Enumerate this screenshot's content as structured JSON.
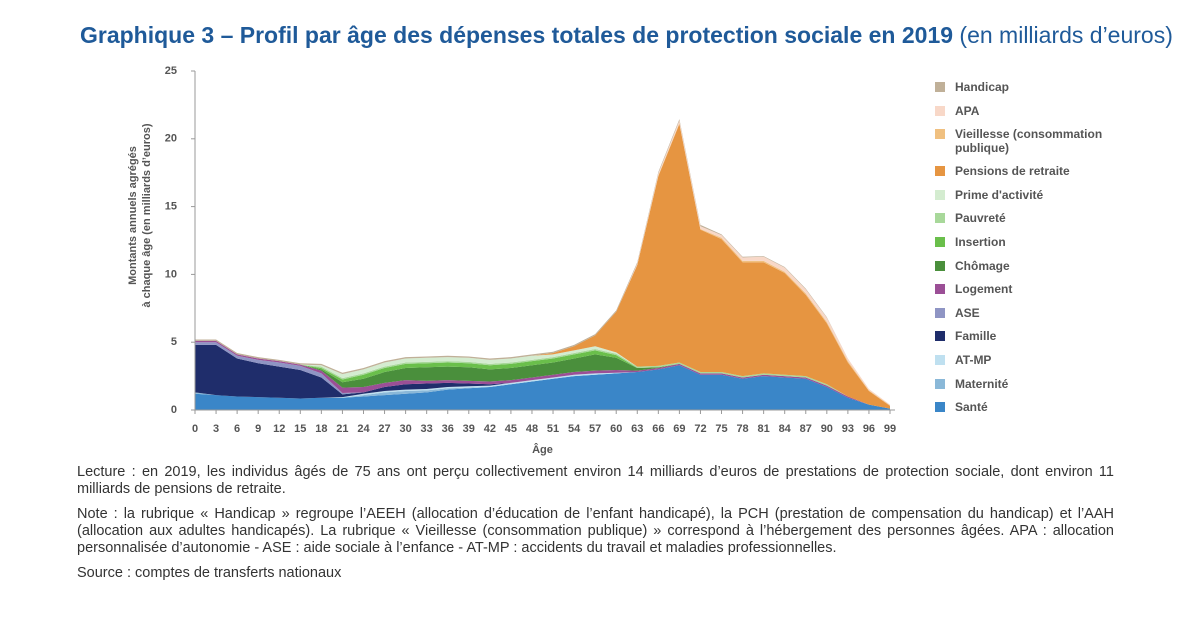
{
  "chart_data": {
    "type": "stacked-area",
    "title": "Graphique 3 – Profil par âge des dépenses totales de protection sociale en 2019",
    "subtitle": "(en milliards d’euros)",
    "ylabel": [
      "Montants annuels agrégés",
      "à chaque âge (en milliards d’euros)"
    ],
    "xlabel": "Âge",
    "xlim": [
      0,
      99
    ],
    "ylim": [
      0,
      25
    ],
    "xticks": [
      0,
      3,
      6,
      9,
      12,
      15,
      18,
      21,
      24,
      27,
      30,
      33,
      36,
      39,
      42,
      45,
      48,
      51,
      54,
      57,
      60,
      63,
      66,
      69,
      72,
      75,
      78,
      81,
      84,
      87,
      90,
      93,
      96,
      99
    ],
    "yticks": [
      0,
      5,
      10,
      15,
      20,
      25
    ],
    "x": [
      0,
      3,
      6,
      9,
      12,
      15,
      18,
      21,
      24,
      27,
      30,
      33,
      36,
      39,
      42,
      45,
      48,
      51,
      54,
      57,
      60,
      63,
      66,
      69,
      72,
      75,
      78,
      81,
      84,
      87,
      90,
      93,
      96,
      99
    ],
    "series": [
      {
        "name": "Santé",
        "color": "#3a86c8",
        "values": [
          1.2,
          1.1,
          1.0,
          0.95,
          0.9,
          0.85,
          0.9,
          0.9,
          1.0,
          1.1,
          1.2,
          1.3,
          1.5,
          1.6,
          1.7,
          1.9,
          2.1,
          2.3,
          2.5,
          2.6,
          2.7,
          2.8,
          3.0,
          3.3,
          2.6,
          2.6,
          2.3,
          2.5,
          2.4,
          2.3,
          1.7,
          0.9,
          0.4,
          0.1
        ]
      },
      {
        "name": "Maternité",
        "color": "#8ab8d8",
        "values": [
          0.1,
          0,
          0,
          0,
          0,
          0,
          0,
          0,
          0.1,
          0.2,
          0.2,
          0.15,
          0.1,
          0.05,
          0,
          0,
          0,
          0,
          0,
          0,
          0,
          0,
          0,
          0,
          0,
          0,
          0,
          0,
          0,
          0,
          0,
          0,
          0,
          0
        ]
      },
      {
        "name": "AT-MP",
        "color": "#bfe0f0",
        "values": [
          0,
          0,
          0,
          0,
          0,
          0,
          0,
          0.05,
          0.1,
          0.1,
          0.1,
          0.1,
          0.1,
          0.1,
          0.1,
          0.1,
          0.1,
          0.1,
          0.1,
          0.1,
          0.05,
          0,
          0,
          0,
          0,
          0,
          0,
          0,
          0,
          0,
          0,
          0,
          0,
          0
        ]
      },
      {
        "name": "Famille",
        "color": "#1f2d6b",
        "values": [
          3.5,
          3.7,
          2.8,
          2.5,
          2.3,
          2.1,
          1.5,
          0.2,
          0.1,
          0.3,
          0.4,
          0.4,
          0.3,
          0.2,
          0.1,
          0,
          0,
          0,
          0,
          0,
          0,
          0,
          0,
          0,
          0,
          0,
          0,
          0,
          0,
          0,
          0,
          0,
          0,
          0
        ]
      },
      {
        "name": "ASE",
        "color": "#8f95c4",
        "values": [
          0.2,
          0.2,
          0.2,
          0.25,
          0.3,
          0.3,
          0.3,
          0.1,
          0,
          0,
          0,
          0,
          0,
          0,
          0,
          0,
          0,
          0,
          0,
          0,
          0,
          0,
          0,
          0,
          0,
          0,
          0,
          0,
          0,
          0,
          0,
          0,
          0,
          0
        ]
      },
      {
        "name": "Logement",
        "color": "#9b4f96",
        "values": [
          0.1,
          0.1,
          0.1,
          0.1,
          0.1,
          0.1,
          0.2,
          0.4,
          0.4,
          0.3,
          0.3,
          0.2,
          0.2,
          0.2,
          0.2,
          0.2,
          0.2,
          0.2,
          0.2,
          0.2,
          0.2,
          0.1,
          0.1,
          0.1,
          0.1,
          0.1,
          0.1,
          0.1,
          0.1,
          0.1,
          0.1,
          0.1,
          0,
          0
        ]
      },
      {
        "name": "Chômage",
        "color": "#4a8f3c",
        "values": [
          0,
          0,
          0,
          0,
          0,
          0,
          0.1,
          0.4,
          0.6,
          0.8,
          0.9,
          1.0,
          1.0,
          1.0,
          0.9,
          0.9,
          0.9,
          0.9,
          1.0,
          1.2,
          0.9,
          0.2,
          0.05,
          0,
          0,
          0,
          0,
          0,
          0,
          0,
          0,
          0,
          0,
          0
        ]
      },
      {
        "name": "Insertion",
        "color": "#6abf4b",
        "values": [
          0,
          0,
          0,
          0,
          0,
          0,
          0.1,
          0.2,
          0.3,
          0.3,
          0.3,
          0.3,
          0.3,
          0.3,
          0.3,
          0.3,
          0.3,
          0.3,
          0.3,
          0.3,
          0.2,
          0,
          0,
          0,
          0,
          0,
          0,
          0,
          0,
          0,
          0,
          0,
          0,
          0
        ]
      },
      {
        "name": "Pauvreté",
        "color": "#a8d89a",
        "values": [
          0,
          0,
          0,
          0,
          0,
          0,
          0.1,
          0.1,
          0.1,
          0.1,
          0.1,
          0.1,
          0.1,
          0.1,
          0.1,
          0.1,
          0.1,
          0.1,
          0.1,
          0.1,
          0.1,
          0.1,
          0.1,
          0.1,
          0.1,
          0.1,
          0.1,
          0.1,
          0.1,
          0.1,
          0.1,
          0,
          0,
          0
        ]
      },
      {
        "name": "Prime d'activité",
        "color": "#d4ecd0",
        "values": [
          0,
          0,
          0,
          0,
          0,
          0,
          0.1,
          0.3,
          0.3,
          0.3,
          0.3,
          0.3,
          0.3,
          0.3,
          0.3,
          0.3,
          0.3,
          0.2,
          0.2,
          0.2,
          0.1,
          0,
          0,
          0,
          0,
          0,
          0,
          0,
          0,
          0,
          0,
          0,
          0,
          0
        ]
      },
      {
        "name": "Pensions de retraite",
        "color": "#e69541",
        "values": [
          0,
          0,
          0,
          0,
          0,
          0,
          0,
          0,
          0,
          0,
          0,
          0,
          0,
          0,
          0,
          0,
          0,
          0.1,
          0.3,
          0.8,
          3.0,
          7.5,
          14.0,
          17.6,
          10.5,
          9.8,
          8.4,
          8.2,
          7.5,
          6.0,
          4.5,
          2.5,
          1.0,
          0.2
        ]
      },
      {
        "name": "Vieillesse (consommation publique)",
        "color": "#f0c080",
        "values": [
          0,
          0,
          0,
          0,
          0,
          0,
          0,
          0,
          0,
          0,
          0,
          0,
          0,
          0,
          0,
          0,
          0,
          0,
          0,
          0,
          0,
          0,
          0.05,
          0.05,
          0.05,
          0.1,
          0.1,
          0.1,
          0.1,
          0.1,
          0.1,
          0.1,
          0.05,
          0.05
        ]
      },
      {
        "name": "APA",
        "color": "#f8d8c8",
        "values": [
          0,
          0,
          0,
          0,
          0,
          0,
          0,
          0,
          0,
          0,
          0,
          0,
          0,
          0,
          0,
          0,
          0,
          0,
          0,
          0,
          0,
          0.1,
          0.15,
          0.2,
          0.2,
          0.2,
          0.25,
          0.3,
          0.3,
          0.3,
          0.3,
          0.2,
          0.1,
          0.05
        ]
      },
      {
        "name": "Handicap",
        "color": "#c0b098",
        "values": [
          0.1,
          0.1,
          0.1,
          0.1,
          0.1,
          0.1,
          0.1,
          0.1,
          0.1,
          0.1,
          0.1,
          0.1,
          0.1,
          0.1,
          0.1,
          0.1,
          0.1,
          0.1,
          0.1,
          0.1,
          0.1,
          0.1,
          0.1,
          0.1,
          0.1,
          0.05,
          0.05,
          0.05,
          0.05,
          0.05,
          0.05,
          0,
          0,
          0
        ]
      }
    ],
    "notes": [
      "Lecture : en 2019, les individus âgés de 75 ans ont perçu collectivement environ 14 milliards d’euros de prestations de protection sociale, dont environ 11 milliards de pensions de retraite.",
      "Note : la rubrique « Handicap » regroupe l’AEEH (allocation d’éducation de l’enfant handicapé), la PCH (prestation de compensation du handicap) et l’AAH (allocation aux adultes handicapés). La rubrique « Vieillesse (consommation publique) » correspond à l’hébergement des personnes âgées. APA : allocation personnalisée d’autonomie - ASE : aide sociale à l’enfance - AT-MP : accidents du travail et maladies professionnelles.",
      "Source : comptes de transferts nationaux"
    ]
  }
}
